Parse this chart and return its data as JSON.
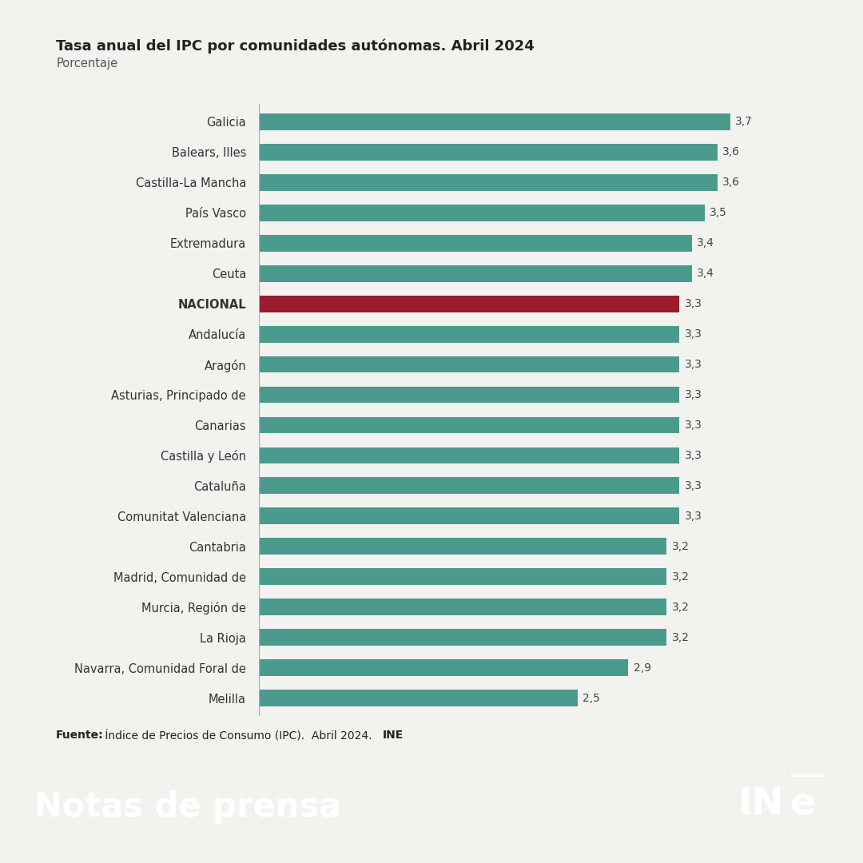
{
  "title": "Tasa anual del IPC por comunidades autónomas. Abril 2024",
  "subtitle": "Porcentaje",
  "categories": [
    "Galicia",
    "Balears, Illes",
    "Castilla-La Mancha",
    "País Vasco",
    "Extremadura",
    "Ceuta",
    "NACIONAL",
    "Andalucía",
    "Aragón",
    "Asturias, Principado de",
    "Canarias",
    "Castilla y León",
    "Cataluña",
    "Comunitat Valenciana",
    "Cantabria",
    "Madrid, Comunidad de",
    "Murcia, Región de",
    "La Rioja",
    "Navarra, Comunidad Foral de",
    "Melilla"
  ],
  "values": [
    3.7,
    3.6,
    3.6,
    3.5,
    3.4,
    3.4,
    3.3,
    3.3,
    3.3,
    3.3,
    3.3,
    3.3,
    3.3,
    3.3,
    3.2,
    3.2,
    3.2,
    3.2,
    2.9,
    2.5
  ],
  "bar_color_default": "#4a9b8e",
  "bar_color_nacional": "#9b1b30",
  "background_color": "#f2f2ee",
  "footer_color": "#9b1b30",
  "source_text_bold": "Fuente:",
  "source_text_normal": " Índice de Precios de Consumo (IPC).  Abril 2024. ",
  "source_text_bold2": "INE",
  "title_fontsize": 13,
  "subtitle_fontsize": 10.5,
  "bar_label_fontsize": 10,
  "category_fontsize": 10.5,
  "xlim": [
    0,
    4.2
  ]
}
